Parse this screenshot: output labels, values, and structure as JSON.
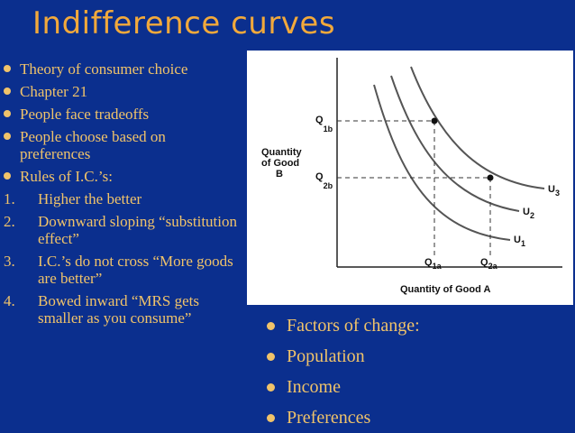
{
  "slide": {
    "title": "Indifference curves",
    "left_list": [
      {
        "type": "bullet",
        "text": "Theory of consumer choice"
      },
      {
        "type": "bullet",
        "text": "Chapter 21"
      },
      {
        "type": "bullet",
        "text": "People face tradeoffs"
      },
      {
        "type": "bullet",
        "text": "People choose based on preferences"
      },
      {
        "type": "bullet",
        "text": "Rules of I.C.’s:"
      },
      {
        "type": "number",
        "num": "1.",
        "text": "Higher the better"
      },
      {
        "type": "number",
        "num": "2.",
        "text": "Downward sloping “substitution effect”"
      },
      {
        "type": "number",
        "num": "3.",
        "text": "I.C.’s do not cross “More goods are better”"
      },
      {
        "type": "number",
        "num": "4.",
        "text": "Bowed inward “MRS gets smaller as you consume”"
      }
    ],
    "right_list": [
      {
        "text": "Factors of change:"
      },
      {
        "text": "Population"
      },
      {
        "text": "Income"
      },
      {
        "text": "Preferences"
      }
    ],
    "colors": {
      "background": "#0b2f8e",
      "title": "#f2a93b",
      "text": "#f0c36a"
    }
  },
  "chart_data": {
    "type": "line",
    "xlabel": "Quantity of Good A",
    "ylabel": "Quantity of Good B",
    "x_ticks": [
      {
        "main": "Q",
        "sub": "1a"
      },
      {
        "main": "Q",
        "sub": "2a"
      }
    ],
    "y_ticks": [
      {
        "main": "Q",
        "sub": "1b"
      },
      {
        "main": "Q",
        "sub": "2b"
      }
    ],
    "series": [
      {
        "name": "U",
        "sub": "1"
      },
      {
        "name": "U",
        "sub": "2"
      },
      {
        "name": "U",
        "sub": "3"
      }
    ],
    "points": [
      "(Q1a, Q1b) on U2",
      "(Q2a, Q2b) on U2"
    ]
  }
}
